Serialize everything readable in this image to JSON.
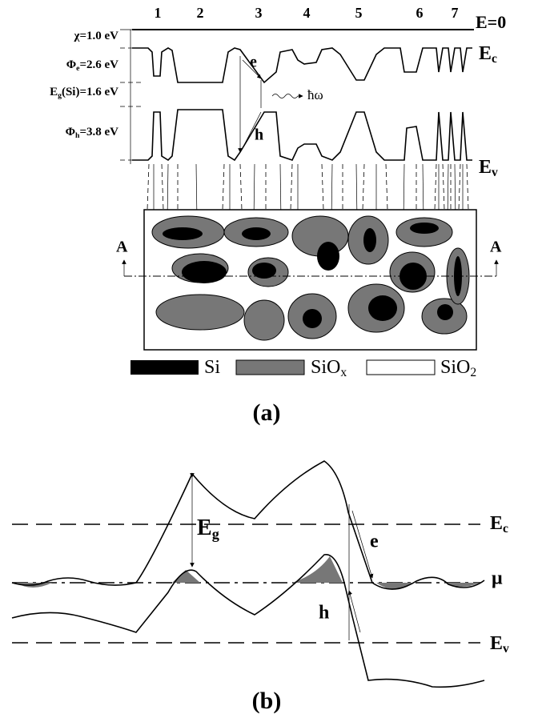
{
  "panel_a": {
    "region_numbers": [
      "1",
      "2",
      "3",
      "4",
      "5",
      "6",
      "7"
    ],
    "e_zero": "E=0",
    "chi": {
      "symbol": "χ",
      "rest": "=1.0 eV"
    },
    "phi_e": {
      "symbol": "Φ",
      "sub": "e",
      "rest": "=2.6 eV"
    },
    "eg_si": {
      "symbol": "E",
      "sub": "g",
      "rest": "(Si)=1.6 eV"
    },
    "phi_h": {
      "symbol": "Φ",
      "sub": "h",
      "rest": "=3.8 eV"
    },
    "ec": {
      "symbol": "E",
      "sub": "c"
    },
    "ev": {
      "symbol": "E",
      "sub": "v"
    },
    "electron": "e",
    "hole": "h",
    "photon": "ħω",
    "section_left": "A",
    "section_right": "A",
    "legend": [
      {
        "symbol": "Si"
      },
      {
        "symbol": "SiO",
        "sub": "x"
      },
      {
        "symbol": "SiO",
        "sub": "2"
      }
    ],
    "caption": "(a)"
  },
  "panel_b": {
    "eg": {
      "symbol": "E",
      "sub": "g"
    },
    "ec": {
      "symbol": "E",
      "sub": "c"
    },
    "electron": "e",
    "mu": "μ",
    "hole": "h",
    "ev": {
      "symbol": "E",
      "sub": "v"
    },
    "caption": "(b)"
  }
}
